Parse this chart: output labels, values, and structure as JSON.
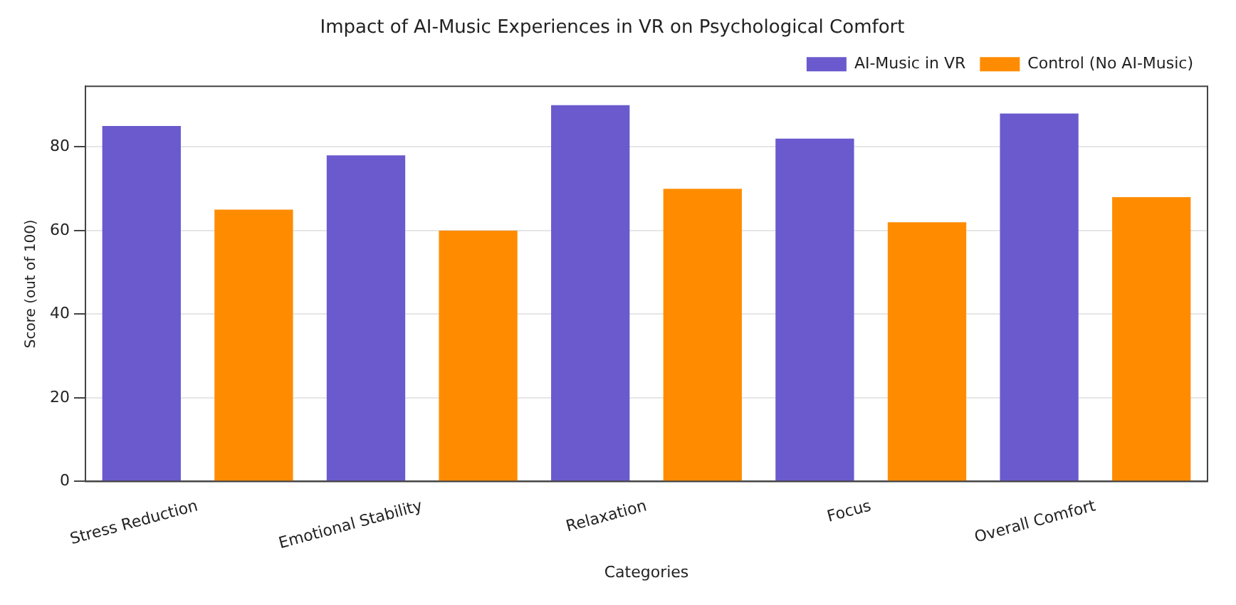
{
  "chart_data": {
    "type": "bar",
    "title": "Impact of AI-Music Experiences in VR on Psychological Comfort",
    "xlabel": "Categories",
    "ylabel": "Score (out of 100)",
    "categories": [
      "Stress Reduction",
      "Emotional Stability",
      "Relaxation",
      "Focus",
      "Overall Comfort"
    ],
    "series": [
      {
        "name": "AI-Music in VR",
        "color": "#6a5acd",
        "values": [
          85,
          78,
          90,
          82,
          88
        ]
      },
      {
        "name": "Control (No AI-Music)",
        "color": "#ff8c00",
        "values": [
          65,
          60,
          70,
          62,
          68
        ]
      }
    ],
    "ylim": [
      0,
      94.5
    ],
    "yticks": [
      0,
      20,
      40,
      60,
      80
    ],
    "grid": "y",
    "legend": "top right"
  }
}
